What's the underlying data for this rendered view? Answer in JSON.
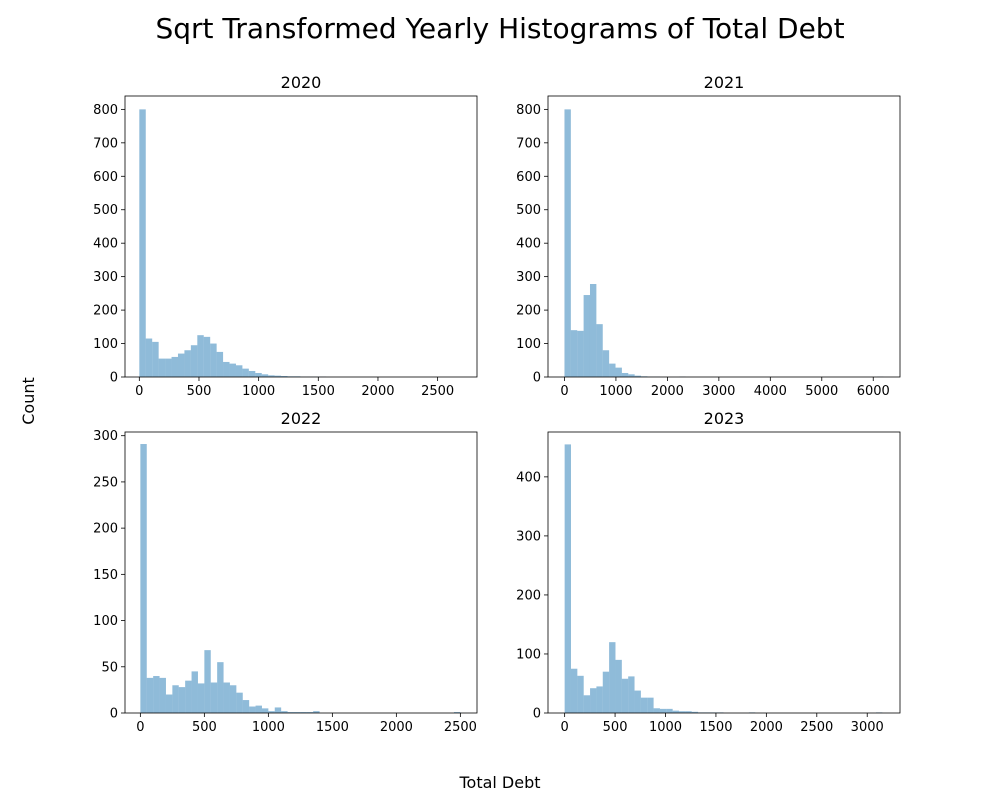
{
  "figure": {
    "title": "Sqrt Transformed Yearly Histograms of Total Debt",
    "xlabel": "Total Debt",
    "ylabel": "Count"
  },
  "chart_data": [
    {
      "type": "bar",
      "title": "2020",
      "xlim": [
        -120,
        2830
      ],
      "ylim": [
        0,
        840
      ],
      "xticks": [
        0,
        500,
        1000,
        1500,
        2000,
        2500
      ],
      "yticks": [
        0,
        100,
        200,
        300,
        400,
        500,
        600,
        700,
        800
      ],
      "bin_start": 0,
      "bin_width": 54,
      "values": [
        800,
        115,
        105,
        55,
        55,
        60,
        70,
        80,
        95,
        125,
        120,
        100,
        75,
        45,
        40,
        35,
        25,
        18,
        12,
        8,
        5,
        4,
        3,
        2,
        2,
        1,
        1,
        1,
        1,
        0,
        0,
        0,
        0,
        0,
        0,
        0,
        0,
        0,
        0,
        0,
        0,
        0,
        0,
        0,
        0,
        0,
        0,
        0,
        0,
        0
      ]
    },
    {
      "type": "bar",
      "title": "2021",
      "xlim": [
        -320,
        6520
      ],
      "ylim": [
        0,
        840
      ],
      "xticks": [
        0,
        1000,
        2000,
        3000,
        4000,
        5000,
        6000
      ],
      "yticks": [
        0,
        100,
        200,
        300,
        400,
        500,
        600,
        700,
        800
      ],
      "bin_start": 0,
      "bin_width": 124,
      "values": [
        800,
        140,
        138,
        245,
        278,
        158,
        80,
        40,
        28,
        12,
        8,
        4,
        2,
        1,
        1,
        0,
        0,
        0,
        1,
        0,
        0,
        0,
        0,
        0,
        0,
        0,
        0,
        0,
        0,
        0,
        0,
        0,
        0,
        0,
        0,
        0,
        0,
        0,
        0,
        0,
        0,
        0,
        0,
        0,
        0,
        0,
        0,
        0,
        0,
        1
      ]
    },
    {
      "type": "bar",
      "title": "2022",
      "xlim": [
        -120,
        2630
      ],
      "ylim": [
        0,
        304
      ],
      "xticks": [
        0,
        500,
        1000,
        1500,
        2000,
        2500
      ],
      "yticks": [
        0,
        50,
        100,
        150,
        200,
        250,
        300
      ],
      "bin_start": 0,
      "bin_width": 50,
      "values": [
        291,
        38,
        40,
        38,
        20,
        30,
        28,
        35,
        45,
        32,
        68,
        33,
        55,
        33,
        30,
        22,
        14,
        7,
        8,
        5,
        2,
        6,
        2,
        1,
        1,
        1,
        1,
        2,
        0,
        0,
        0,
        0,
        0,
        0,
        0,
        0,
        0,
        0,
        0,
        0,
        0,
        0,
        0,
        0,
        0,
        0,
        0,
        0,
        0,
        1
      ]
    },
    {
      "type": "bar",
      "title": "2023",
      "xlim": [
        -165,
        3325
      ],
      "ylim": [
        0,
        476
      ],
      "xticks": [
        0,
        500,
        1000,
        1500,
        2000,
        2500,
        3000
      ],
      "yticks": [
        0,
        100,
        200,
        300,
        400
      ],
      "bin_start": 0,
      "bin_width": 63,
      "values": [
        455,
        75,
        63,
        30,
        42,
        45,
        70,
        120,
        90,
        58,
        62,
        38,
        26,
        26,
        8,
        7,
        7,
        4,
        3,
        3,
        2,
        1,
        1,
        1,
        1,
        0,
        0,
        0,
        0,
        1,
        0,
        0,
        0,
        0,
        0,
        0,
        0,
        0,
        0,
        0,
        0,
        0,
        0,
        0,
        0,
        0,
        0,
        0,
        0,
        1
      ]
    }
  ],
  "colors": {
    "bar": "#1f77b4",
    "bar_opacity": 0.5,
    "axes": "#000000"
  }
}
